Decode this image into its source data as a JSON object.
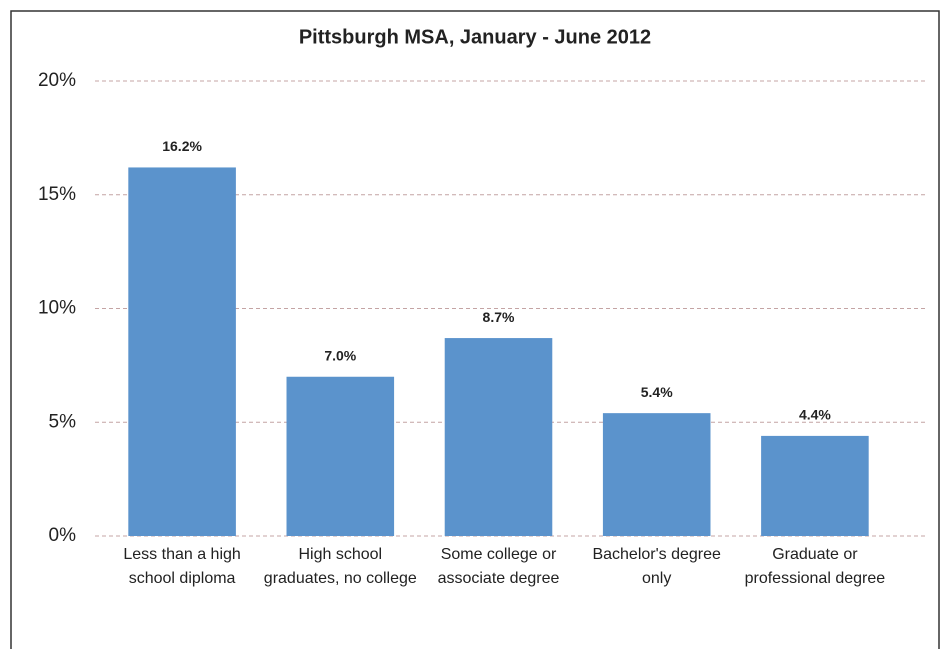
{
  "chart_data": {
    "type": "bar",
    "title": "Pittsburgh MSA, January - June 2012",
    "categories": [
      "Less than a high school diploma",
      "High school graduates, no college",
      "Some college or associate degree",
      "Bachelor's degree only",
      "Graduate or professional degree"
    ],
    "values": [
      16.2,
      7.0,
      8.7,
      5.4,
      4.4
    ],
    "value_labels": [
      "16.2%",
      "7.0%",
      "8.7%",
      "5.4%",
      "4.4%"
    ],
    "color": "#5b93cc",
    "ylim": [
      0,
      20
    ],
    "yticks": [
      {
        "value": 0,
        "label": "0%"
      },
      {
        "value": 5,
        "label": "5%"
      },
      {
        "value": 10,
        "label": "10%"
      },
      {
        "value": 15,
        "label": "15%"
      },
      {
        "value": 20,
        "label": "20%"
      }
    ],
    "grid": true
  }
}
